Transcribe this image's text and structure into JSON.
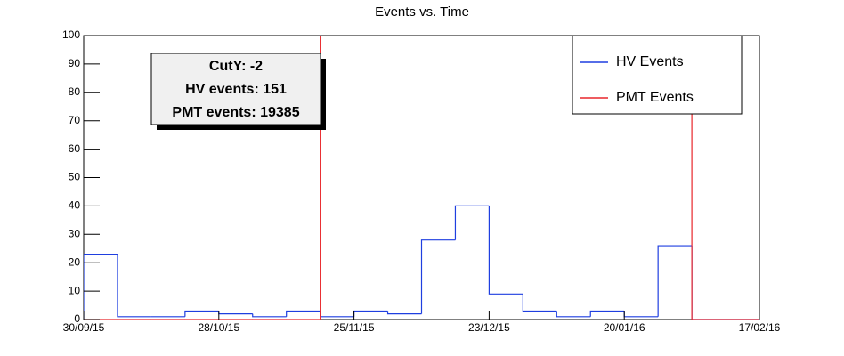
{
  "chart_data": {
    "type": "histogram",
    "title": "Events vs. Time",
    "bins": [
      "2015-09-30",
      "2015-10-07",
      "2015-10-14",
      "2015-10-21",
      "2015-10-28",
      "2015-11-04",
      "2015-11-11",
      "2015-11-18",
      "2015-11-25",
      "2015-12-02",
      "2015-12-09",
      "2015-12-16",
      "2015-12-23",
      "2015-12-30",
      "2016-01-06",
      "2016-01-13",
      "2016-01-20",
      "2016-01-27",
      "2016-02-03",
      "2016-02-10",
      "2016-02-17"
    ],
    "series": [
      {
        "name": "HV Events",
        "color": "#1f3fe0",
        "values": [
          23,
          1,
          1,
          3,
          2,
          1,
          3,
          1,
          3,
          2,
          28,
          40,
          9,
          3,
          1,
          3,
          1,
          26,
          0,
          0
        ]
      },
      {
        "name": "PMT Events",
        "color": "#e8262b",
        "values": [
          0,
          0,
          0,
          0,
          0,
          0,
          0,
          100,
          100,
          100,
          100,
          100,
          100,
          100,
          100,
          100,
          100,
          100,
          0,
          0
        ]
      }
    ],
    "xlim": [
      "2015-09-30",
      "2016-02-17"
    ],
    "xticks": [
      {
        "value": "2015-09-30",
        "label": "30/09/15"
      },
      {
        "value": "2015-10-28",
        "label": "28/10/15"
      },
      {
        "value": "2015-11-25",
        "label": "25/11/15"
      },
      {
        "value": "2015-12-23",
        "label": "23/12/15"
      },
      {
        "value": "2016-01-20",
        "label": "20/01/16"
      },
      {
        "value": "2016-02-17",
        "label": "17/02/16"
      }
    ],
    "ylim": [
      0,
      100
    ],
    "yticks": [
      0,
      10,
      20,
      30,
      40,
      50,
      60,
      70,
      80,
      90,
      100
    ],
    "annotations": [
      "CutY: -2",
      "HV events: 151",
      "PMT events: 19385"
    ],
    "legend": "top-right"
  }
}
